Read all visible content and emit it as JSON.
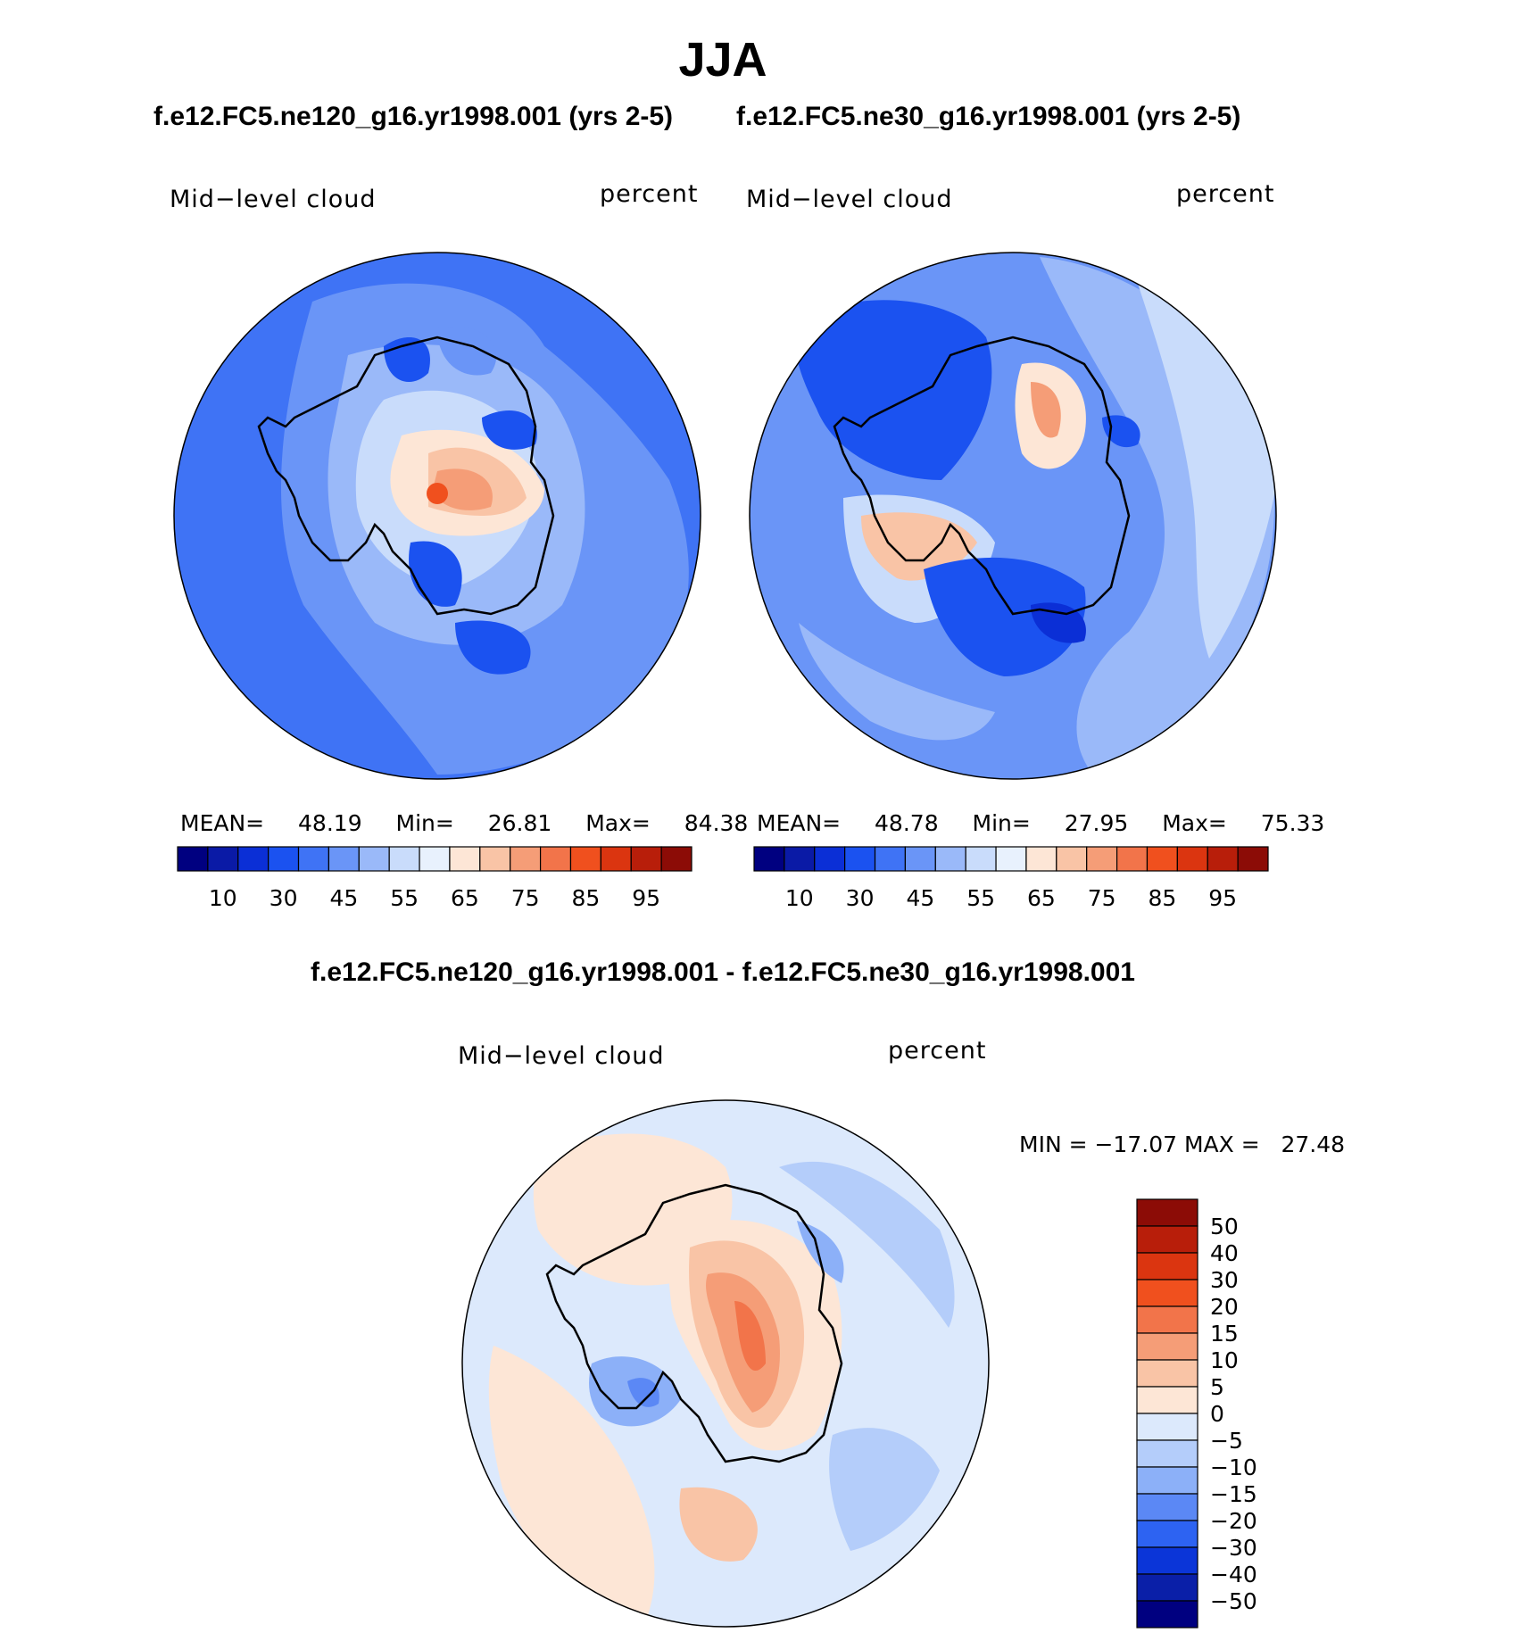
{
  "title": "JJA",
  "panels": [
    {
      "case_title": "f.e12.FC5.ne120_g16.yr1998.001 (yrs 2-5)",
      "variable": "Mid−level cloud",
      "units": "percent",
      "stats": {
        "mean_label": "MEAN=",
        "mean": "48.19",
        "min_label": "Min=",
        "min": "26.81",
        "max_label": "Max=",
        "max": "84.38"
      }
    },
    {
      "case_title": "f.e12.FC5.ne30_g16.yr1998.001 (yrs 2-5)",
      "variable": "Mid−level cloud",
      "units": "percent",
      "stats": {
        "mean_label": "MEAN=",
        "mean": "48.78",
        "min_label": "Min=",
        "min": "27.95",
        "max_label": "Max=",
        "max": "75.33"
      }
    }
  ],
  "colorbar_levels": [
    "10",
    "30",
    "45",
    "55",
    "65",
    "75",
    "85",
    "95"
  ],
  "colorbar_colors": [
    "#000080",
    "#0a1aa6",
    "#0b2fd6",
    "#1b52f0",
    "#3f73f5",
    "#6a95f7",
    "#9ab9f9",
    "#c9dcfb",
    "#e8f1fd",
    "#fde6d6",
    "#f9c4a6",
    "#f59d77",
    "#f2744a",
    "#f0501e",
    "#db3510",
    "#b81e0a",
    "#8c0c06"
  ],
  "difference": {
    "title": "f.e12.FC5.ne120_g16.yr1998.001 - f.e12.FC5.ne30_g16.yr1998.001",
    "variable": "Mid−level cloud",
    "units": "percent",
    "stats": "MIN = −17.07 MAX =   27.48",
    "levels": [
      "50",
      "40",
      "30",
      "20",
      "15",
      "10",
      "5",
      "0",
      "−5",
      "−10",
      "−15",
      "−20",
      "−30",
      "−40",
      "−50"
    ],
    "colors": [
      "#8c0c06",
      "#b81e0a",
      "#db3510",
      "#f0501e",
      "#f2744a",
      "#f59d77",
      "#f9c4a6",
      "#fde6d6",
      "#dce9fc",
      "#b4cdfa",
      "#8cb0f8",
      "#5b88f5",
      "#2d63f2",
      "#0b35d8",
      "#0a1fa8",
      "#000080"
    ]
  },
  "chart_data": [
    {
      "type": "heatmap",
      "title": "f.e12.FC5.ne120_g16.yr1998.001 (yrs 2-5)",
      "variable": "Mid−level cloud",
      "units": "percent",
      "mean": 48.19,
      "min": 26.81,
      "max": 84.38,
      "contour_levels": [
        10,
        30,
        45,
        55,
        65,
        75,
        85,
        95
      ]
    },
    {
      "type": "heatmap",
      "title": "f.e12.FC5.ne30_g16.yr1998.001 (yrs 2-5)",
      "variable": "Mid−level cloud",
      "units": "percent",
      "mean": 48.78,
      "min": 27.95,
      "max": 75.33,
      "contour_levels": [
        10,
        30,
        45,
        55,
        65,
        75,
        85,
        95
      ]
    },
    {
      "type": "heatmap",
      "title": "f.e12.FC5.ne120_g16.yr1998.001 - f.e12.FC5.ne30_g16.yr1998.001",
      "variable": "Mid−level cloud",
      "units": "percent",
      "min": -17.07,
      "max": 27.48,
      "contour_levels": [
        -50,
        -40,
        -30,
        -20,
        -15,
        -10,
        -5,
        0,
        5,
        10,
        15,
        20,
        30,
        40,
        50
      ]
    }
  ]
}
